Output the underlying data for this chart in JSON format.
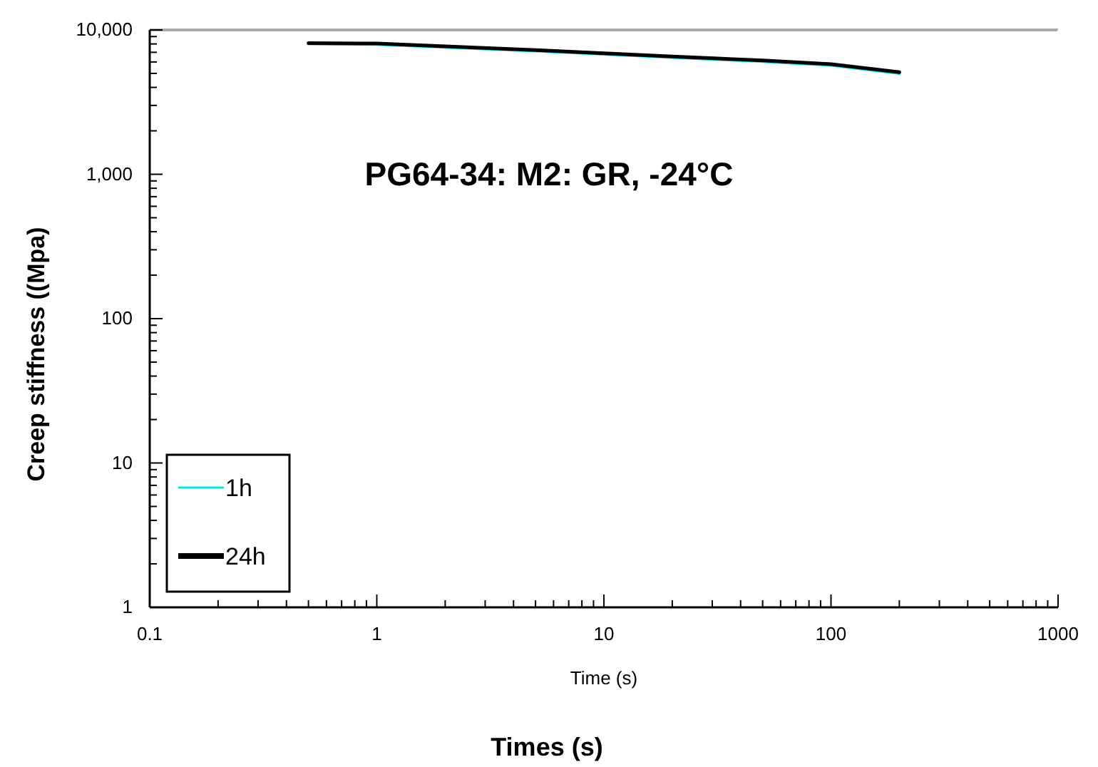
{
  "chart_data": {
    "type": "line",
    "xlabel": "Times (s)",
    "ylabel": "Creep stiffness ((Mpa)",
    "annotations": [
      "PG64-34: M2: GR, -24°C",
      "Time (s)"
    ],
    "log": "xy",
    "legend": "bottom left",
    "grid": false,
    "marker": "none",
    "line_style": "solid",
    "xlim": [
      0.1,
      1000
    ],
    "ylim": [
      1,
      10000
    ],
    "xticks": [
      {
        "value": 0.1,
        "label": "0.1"
      },
      {
        "value": 0.2,
        "label": null
      },
      {
        "value": 0.3,
        "label": null
      },
      {
        "value": 0.4,
        "label": null
      },
      {
        "value": 0.5,
        "label": null
      },
      {
        "value": 0.6,
        "label": null
      },
      {
        "value": 0.7,
        "label": null
      },
      {
        "value": 0.8,
        "label": null
      },
      {
        "value": 0.9,
        "label": null
      },
      1,
      {
        "value": 2,
        "label": null
      },
      {
        "value": 3,
        "label": null
      },
      {
        "value": 4,
        "label": null
      },
      {
        "value": 5,
        "label": null
      },
      {
        "value": 6,
        "label": null
      },
      {
        "value": 7,
        "label": null
      },
      {
        "value": 8,
        "label": null
      },
      {
        "value": 9,
        "label": null
      },
      10,
      {
        "value": 20,
        "label": null
      },
      {
        "value": 30,
        "label": null
      },
      {
        "value": 40,
        "label": null
      },
      {
        "value": 50,
        "label": null
      },
      {
        "value": 60,
        "label": null
      },
      {
        "value": 70,
        "label": null
      },
      {
        "value": 80,
        "label": null
      },
      {
        "value": 90,
        "label": null
      },
      100,
      {
        "value": 200,
        "label": null
      },
      {
        "value": 300,
        "label": null
      },
      {
        "value": 400,
        "label": null
      },
      {
        "value": 500,
        "label": null
      },
      {
        "value": 600,
        "label": null
      },
      {
        "value": 700,
        "label": null
      },
      {
        "value": 800,
        "label": null
      },
      {
        "value": 900,
        "label": null
      },
      1000
    ],
    "yticks": [
      1,
      {
        "value": 2,
        "label": null
      },
      {
        "value": 3,
        "label": null
      },
      {
        "value": 4,
        "label": null
      },
      {
        "value": 5,
        "label": null
      },
      {
        "value": 6,
        "label": null
      },
      {
        "value": 7,
        "label": null
      },
      {
        "value": 8,
        "label": null
      },
      {
        "value": 9,
        "label": null
      },
      10,
      {
        "value": 20,
        "label": null
      },
      {
        "value": 30,
        "label": null
      },
      {
        "value": 40,
        "label": null
      },
      {
        "value": 50,
        "label": null
      },
      {
        "value": 60,
        "label": null
      },
      {
        "value": 70,
        "label": null
      },
      {
        "value": 80,
        "label": null
      },
      {
        "value": 90,
        "label": null
      },
      100,
      {
        "value": 200,
        "label": null
      },
      {
        "value": 300,
        "label": null
      },
      {
        "value": 400,
        "label": null
      },
      {
        "value": 500,
        "label": null
      },
      {
        "value": 600,
        "label": null
      },
      {
        "value": 700,
        "label": null
      },
      {
        "value": 800,
        "label": null
      },
      {
        "value": 900,
        "label": null
      },
      {
        "value": 1000,
        "label": "1,000"
      },
      {
        "value": 2000,
        "label": null
      },
      {
        "value": 3000,
        "label": null
      },
      {
        "value": 4000,
        "label": null
      },
      {
        "value": 5000,
        "label": null
      },
      {
        "value": 6000,
        "label": null
      },
      {
        "value": 7000,
        "label": null
      },
      {
        "value": 8000,
        "label": null
      },
      {
        "value": 9000,
        "label": null
      },
      {
        "value": 10000,
        "label": "10,000"
      }
    ],
    "x": [
      0.5,
      1,
      2,
      5,
      10,
      20,
      50,
      100,
      200
    ],
    "series": [
      {
        "name": "1h",
        "color": "#00e5ee",
        "values": [
          8000,
          7950,
          7600,
          7150,
          6800,
          6450,
          6050,
          5700,
          5000
        ]
      },
      {
        "name": "24h",
        "color": "#000000",
        "values": [
          8100,
          8050,
          7700,
          7250,
          6900,
          6550,
          6150,
          5800,
          5100
        ]
      }
    ]
  }
}
